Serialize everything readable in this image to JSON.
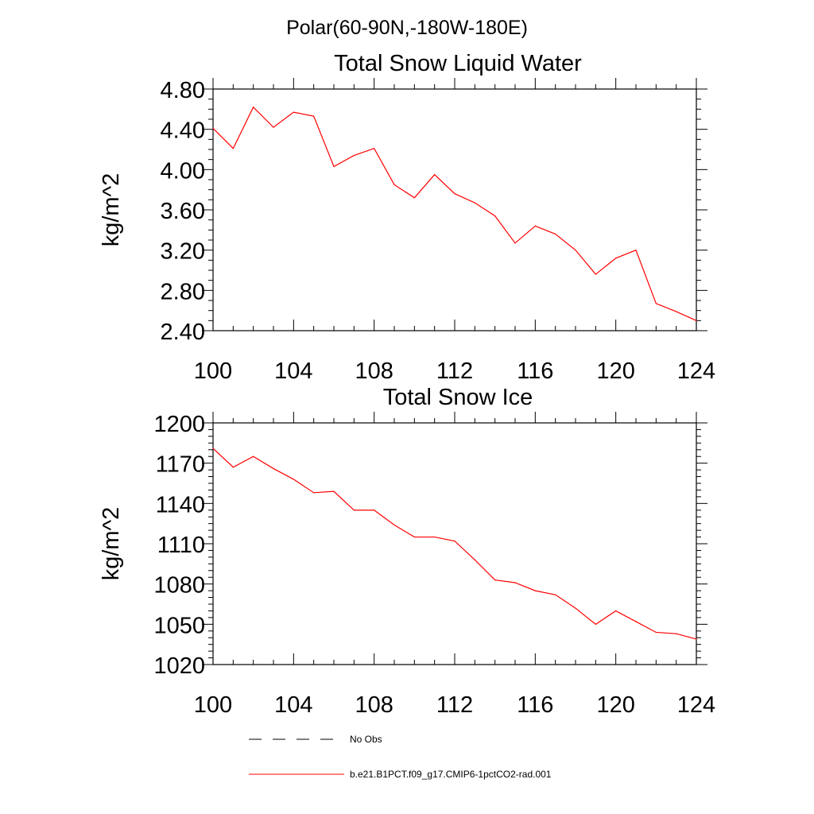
{
  "page": {
    "title": "Polar(60-90N,-180W-180E)"
  },
  "legend": {
    "items": [
      {
        "label": "No Obs",
        "style": "dashed",
        "color": "#000000"
      },
      {
        "label": "b.e21.B1PCT.f09_g17.CMIP6-1pctCO2-rad.001",
        "style": "solid",
        "color": "#ff0000"
      }
    ]
  },
  "chart_data": [
    {
      "type": "line",
      "title": "Total Snow Liquid Water",
      "xlabel": "",
      "ylabel": "kg/m^2",
      "xlim": [
        100,
        124
      ],
      "ylim": [
        2.4,
        4.8
      ],
      "xticks": [
        100,
        104,
        108,
        112,
        116,
        120,
        124
      ],
      "yticks": [
        2.4,
        2.8,
        3.2,
        3.6,
        4.0,
        4.4,
        4.8
      ],
      "ytick_decimals": 2,
      "x_minor_step": 1,
      "y_minor_step": 0.1,
      "grid": false,
      "series": [
        {
          "color": "#ff0000",
          "x": [
            100,
            101,
            102,
            103,
            104,
            105,
            106,
            107,
            108,
            109,
            110,
            111,
            112,
            113,
            114,
            115,
            116,
            117,
            118,
            119,
            120,
            121,
            122,
            123,
            124
          ],
          "values": [
            4.41,
            4.21,
            4.62,
            4.42,
            4.57,
            4.53,
            4.03,
            4.14,
            4.21,
            3.85,
            3.72,
            3.95,
            3.76,
            3.67,
            3.54,
            3.27,
            3.44,
            3.36,
            3.2,
            2.96,
            3.12,
            3.2,
            2.67,
            2.59,
            2.5
          ]
        }
      ]
    },
    {
      "type": "line",
      "title": "Total Snow Ice",
      "xlabel": "",
      "ylabel": "kg/m^2",
      "xlim": [
        100,
        124
      ],
      "ylim": [
        1020,
        1200
      ],
      "xticks": [
        100,
        104,
        108,
        112,
        116,
        120,
        124
      ],
      "yticks": [
        1020,
        1050,
        1080,
        1110,
        1140,
        1170,
        1200
      ],
      "ytick_decimals": 0,
      "x_minor_step": 1,
      "y_minor_step": 5,
      "grid": false,
      "series": [
        {
          "color": "#ff0000",
          "x": [
            100,
            101,
            102,
            103,
            104,
            105,
            106,
            107,
            108,
            109,
            110,
            111,
            112,
            113,
            114,
            115,
            116,
            117,
            118,
            119,
            120,
            121,
            122,
            123,
            124
          ],
          "values": [
            1181,
            1167,
            1175,
            1166,
            1158,
            1148,
            1149,
            1135,
            1135,
            1124,
            1115,
            1115,
            1112,
            1098,
            1083,
            1081,
            1075,
            1072,
            1062,
            1050,
            1060,
            1052,
            1044,
            1043,
            1039
          ]
        }
      ]
    }
  ]
}
